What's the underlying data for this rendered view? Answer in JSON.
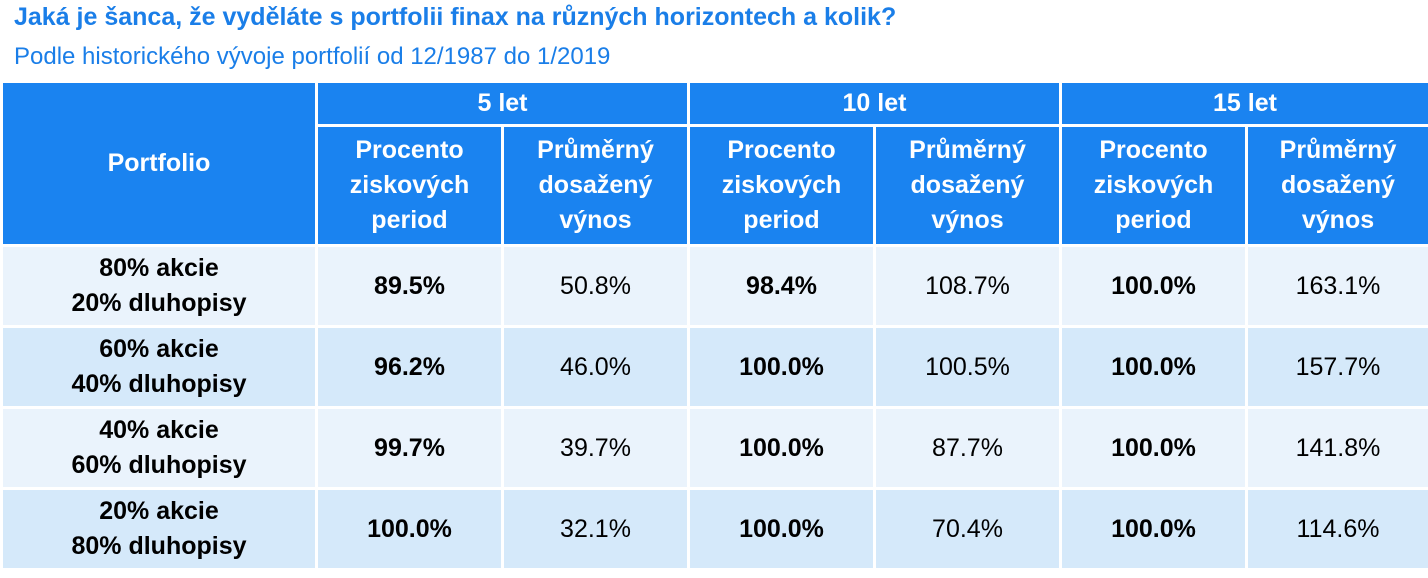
{
  "title": "Jaká je šanca, že vyděláte s portfolii finax na různých horizontech a kolik?",
  "subtitle": "Podle historického vývoje portfolií od 12/1987 do 1/2019",
  "table": {
    "portfolio_header": "Portfolio",
    "horizons": [
      "5 let",
      "10 let",
      "15 let"
    ],
    "sub_headers": {
      "percent": [
        "Procento",
        "ziskových",
        "period"
      ],
      "avg": [
        "Průměrný",
        "dosažený",
        "výnos"
      ]
    },
    "rows": [
      {
        "portfolio": [
          "80% akcie",
          "20% dluhopisy"
        ],
        "values": [
          "89.5%",
          "50.8%",
          "98.4%",
          "108.7%",
          "100.0%",
          "163.1%"
        ]
      },
      {
        "portfolio": [
          "60% akcie",
          "40% dluhopisy"
        ],
        "values": [
          "96.2%",
          "46.0%",
          "100.0%",
          "100.5%",
          "100.0%",
          "157.7%"
        ]
      },
      {
        "portfolio": [
          "40% akcie",
          "60% dluhopisy"
        ],
        "values": [
          "99.7%",
          "39.7%",
          "100.0%",
          "87.7%",
          "100.0%",
          "141.8%"
        ]
      },
      {
        "portfolio": [
          "20% akcie",
          "80% dluhopisy"
        ],
        "values": [
          "100.0%",
          "32.1%",
          "100.0%",
          "70.4%",
          "100.0%",
          "114.6%"
        ]
      }
    ]
  },
  "colors": {
    "header_bg": "#1a83f0",
    "title_color": "#1a7ee8",
    "row_light": "#eaf3fc",
    "row_dark": "#d5e9fa"
  }
}
